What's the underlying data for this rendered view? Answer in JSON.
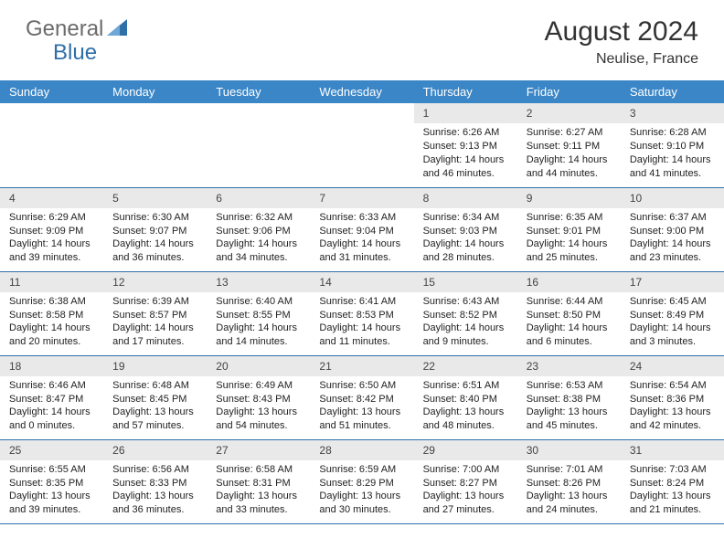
{
  "logo": {
    "part1": "General",
    "part2": "Blue"
  },
  "title": "August 2024",
  "location": "Neulise, France",
  "colors": {
    "header_bg": "#3b86c6",
    "border": "#2f6fa8",
    "daynum_bg": "#e9e9e9",
    "logo_gray": "#6b6b6b",
    "logo_blue": "#2f6fa8"
  },
  "weekdays": [
    "Sunday",
    "Monday",
    "Tuesday",
    "Wednesday",
    "Thursday",
    "Friday",
    "Saturday"
  ],
  "weeks": [
    [
      {
        "n": "",
        "sr": "",
        "ss": "",
        "dl": ""
      },
      {
        "n": "",
        "sr": "",
        "ss": "",
        "dl": ""
      },
      {
        "n": "",
        "sr": "",
        "ss": "",
        "dl": ""
      },
      {
        "n": "",
        "sr": "",
        "ss": "",
        "dl": ""
      },
      {
        "n": "1",
        "sr": "Sunrise: 6:26 AM",
        "ss": "Sunset: 9:13 PM",
        "dl": "Daylight: 14 hours and 46 minutes."
      },
      {
        "n": "2",
        "sr": "Sunrise: 6:27 AM",
        "ss": "Sunset: 9:11 PM",
        "dl": "Daylight: 14 hours and 44 minutes."
      },
      {
        "n": "3",
        "sr": "Sunrise: 6:28 AM",
        "ss": "Sunset: 9:10 PM",
        "dl": "Daylight: 14 hours and 41 minutes."
      }
    ],
    [
      {
        "n": "4",
        "sr": "Sunrise: 6:29 AM",
        "ss": "Sunset: 9:09 PM",
        "dl": "Daylight: 14 hours and 39 minutes."
      },
      {
        "n": "5",
        "sr": "Sunrise: 6:30 AM",
        "ss": "Sunset: 9:07 PM",
        "dl": "Daylight: 14 hours and 36 minutes."
      },
      {
        "n": "6",
        "sr": "Sunrise: 6:32 AM",
        "ss": "Sunset: 9:06 PM",
        "dl": "Daylight: 14 hours and 34 minutes."
      },
      {
        "n": "7",
        "sr": "Sunrise: 6:33 AM",
        "ss": "Sunset: 9:04 PM",
        "dl": "Daylight: 14 hours and 31 minutes."
      },
      {
        "n": "8",
        "sr": "Sunrise: 6:34 AM",
        "ss": "Sunset: 9:03 PM",
        "dl": "Daylight: 14 hours and 28 minutes."
      },
      {
        "n": "9",
        "sr": "Sunrise: 6:35 AM",
        "ss": "Sunset: 9:01 PM",
        "dl": "Daylight: 14 hours and 25 minutes."
      },
      {
        "n": "10",
        "sr": "Sunrise: 6:37 AM",
        "ss": "Sunset: 9:00 PM",
        "dl": "Daylight: 14 hours and 23 minutes."
      }
    ],
    [
      {
        "n": "11",
        "sr": "Sunrise: 6:38 AM",
        "ss": "Sunset: 8:58 PM",
        "dl": "Daylight: 14 hours and 20 minutes."
      },
      {
        "n": "12",
        "sr": "Sunrise: 6:39 AM",
        "ss": "Sunset: 8:57 PM",
        "dl": "Daylight: 14 hours and 17 minutes."
      },
      {
        "n": "13",
        "sr": "Sunrise: 6:40 AM",
        "ss": "Sunset: 8:55 PM",
        "dl": "Daylight: 14 hours and 14 minutes."
      },
      {
        "n": "14",
        "sr": "Sunrise: 6:41 AM",
        "ss": "Sunset: 8:53 PM",
        "dl": "Daylight: 14 hours and 11 minutes."
      },
      {
        "n": "15",
        "sr": "Sunrise: 6:43 AM",
        "ss": "Sunset: 8:52 PM",
        "dl": "Daylight: 14 hours and 9 minutes."
      },
      {
        "n": "16",
        "sr": "Sunrise: 6:44 AM",
        "ss": "Sunset: 8:50 PM",
        "dl": "Daylight: 14 hours and 6 minutes."
      },
      {
        "n": "17",
        "sr": "Sunrise: 6:45 AM",
        "ss": "Sunset: 8:49 PM",
        "dl": "Daylight: 14 hours and 3 minutes."
      }
    ],
    [
      {
        "n": "18",
        "sr": "Sunrise: 6:46 AM",
        "ss": "Sunset: 8:47 PM",
        "dl": "Daylight: 14 hours and 0 minutes."
      },
      {
        "n": "19",
        "sr": "Sunrise: 6:48 AM",
        "ss": "Sunset: 8:45 PM",
        "dl": "Daylight: 13 hours and 57 minutes."
      },
      {
        "n": "20",
        "sr": "Sunrise: 6:49 AM",
        "ss": "Sunset: 8:43 PM",
        "dl": "Daylight: 13 hours and 54 minutes."
      },
      {
        "n": "21",
        "sr": "Sunrise: 6:50 AM",
        "ss": "Sunset: 8:42 PM",
        "dl": "Daylight: 13 hours and 51 minutes."
      },
      {
        "n": "22",
        "sr": "Sunrise: 6:51 AM",
        "ss": "Sunset: 8:40 PM",
        "dl": "Daylight: 13 hours and 48 minutes."
      },
      {
        "n": "23",
        "sr": "Sunrise: 6:53 AM",
        "ss": "Sunset: 8:38 PM",
        "dl": "Daylight: 13 hours and 45 minutes."
      },
      {
        "n": "24",
        "sr": "Sunrise: 6:54 AM",
        "ss": "Sunset: 8:36 PM",
        "dl": "Daylight: 13 hours and 42 minutes."
      }
    ],
    [
      {
        "n": "25",
        "sr": "Sunrise: 6:55 AM",
        "ss": "Sunset: 8:35 PM",
        "dl": "Daylight: 13 hours and 39 minutes."
      },
      {
        "n": "26",
        "sr": "Sunrise: 6:56 AM",
        "ss": "Sunset: 8:33 PM",
        "dl": "Daylight: 13 hours and 36 minutes."
      },
      {
        "n": "27",
        "sr": "Sunrise: 6:58 AM",
        "ss": "Sunset: 8:31 PM",
        "dl": "Daylight: 13 hours and 33 minutes."
      },
      {
        "n": "28",
        "sr": "Sunrise: 6:59 AM",
        "ss": "Sunset: 8:29 PM",
        "dl": "Daylight: 13 hours and 30 minutes."
      },
      {
        "n": "29",
        "sr": "Sunrise: 7:00 AM",
        "ss": "Sunset: 8:27 PM",
        "dl": "Daylight: 13 hours and 27 minutes."
      },
      {
        "n": "30",
        "sr": "Sunrise: 7:01 AM",
        "ss": "Sunset: 8:26 PM",
        "dl": "Daylight: 13 hours and 24 minutes."
      },
      {
        "n": "31",
        "sr": "Sunrise: 7:03 AM",
        "ss": "Sunset: 8:24 PM",
        "dl": "Daylight: 13 hours and 21 minutes."
      }
    ]
  ]
}
